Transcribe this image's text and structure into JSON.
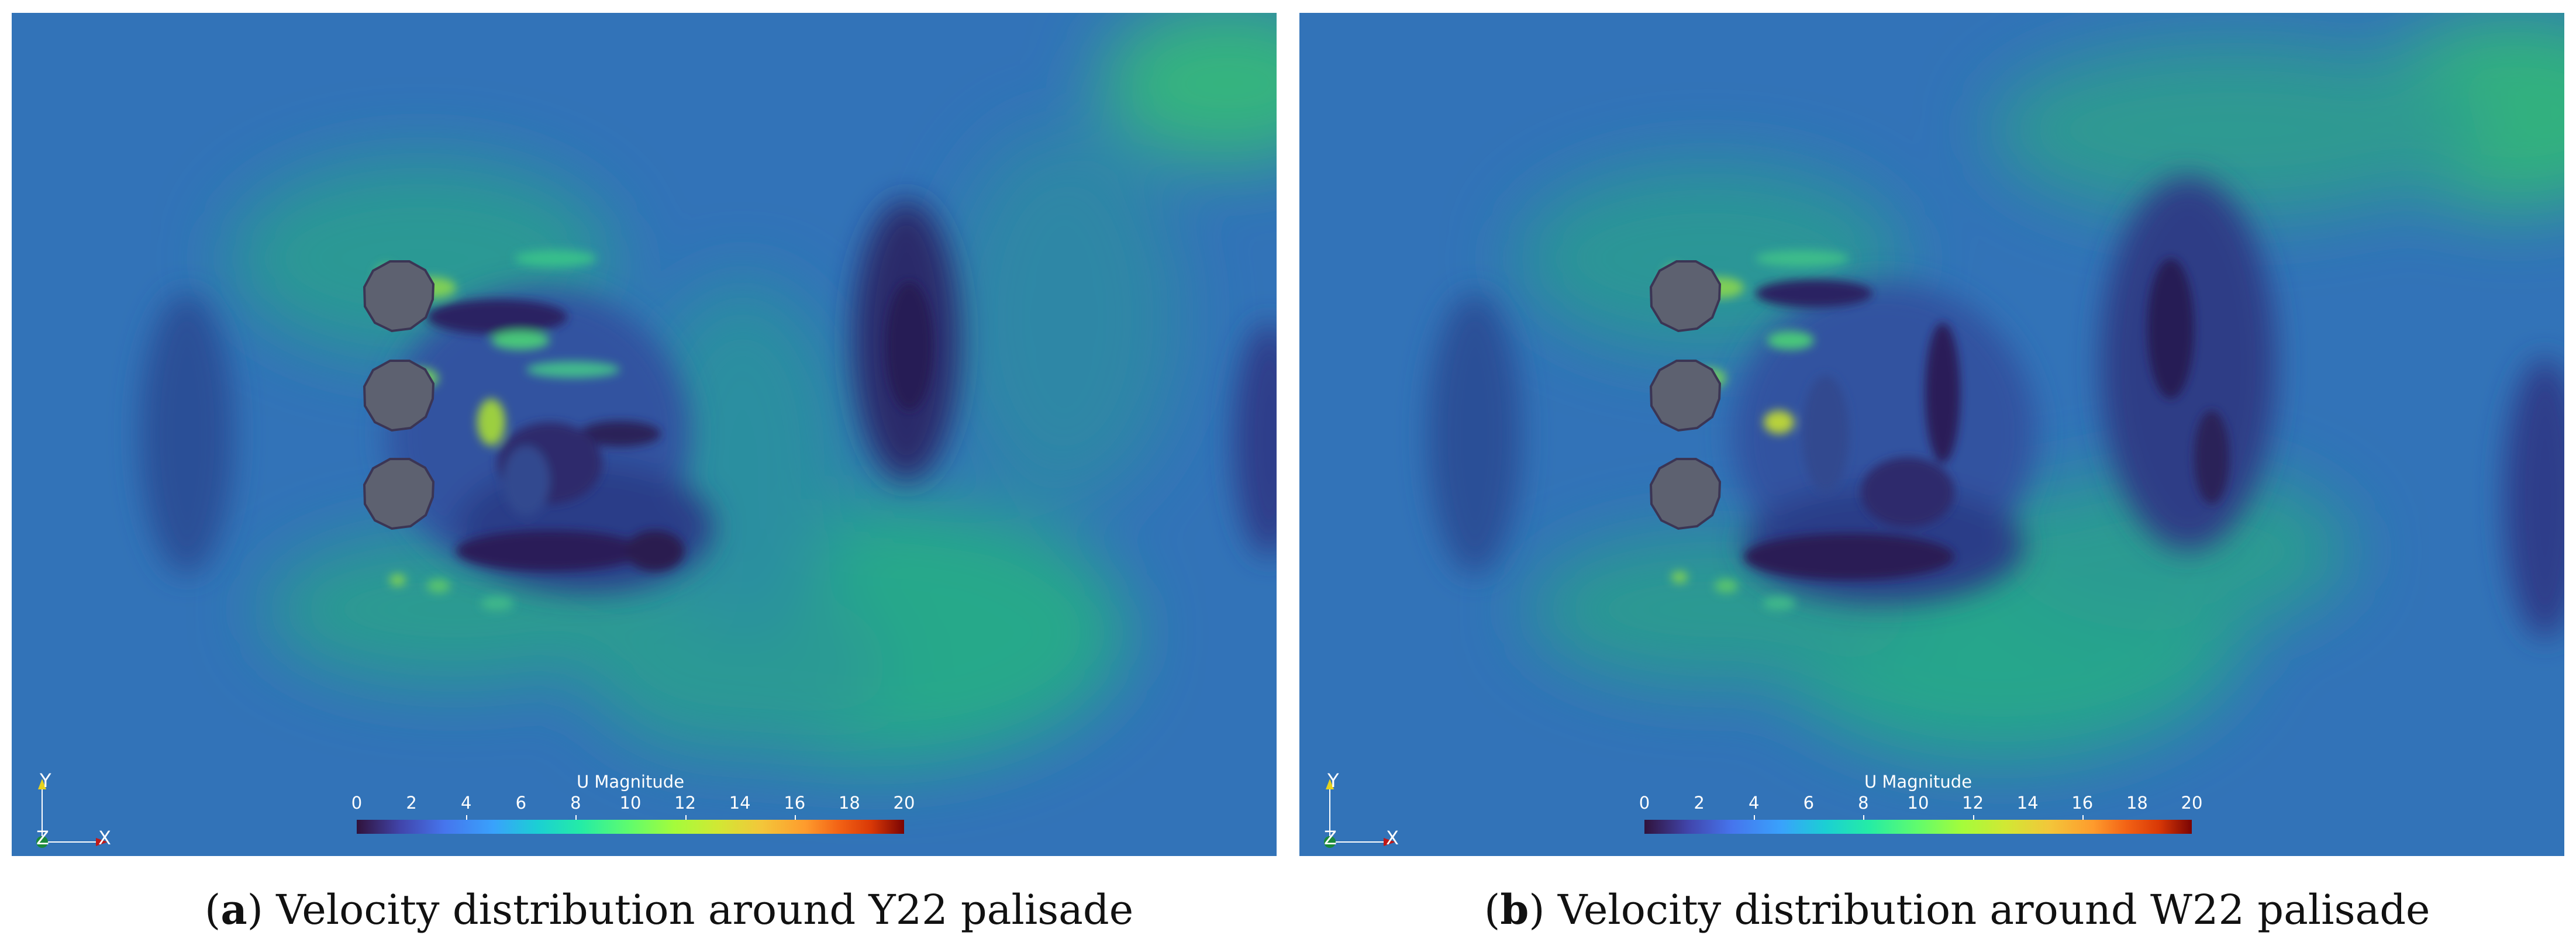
{
  "panels": [
    {
      "id": "a",
      "colorbar": {
        "title": "U Magnitude",
        "ticks": [
          "0",
          "2",
          "4",
          "6",
          "8",
          "10",
          "12",
          "14",
          "16",
          "18",
          "20"
        ]
      },
      "axes": {
        "y": "Y",
        "z": "Z",
        "x": "X"
      },
      "caption": {
        "letter": "a",
        "text": "Velocity distribution around Y22 palisade"
      }
    },
    {
      "id": "b",
      "colorbar": {
        "title": "U Magnitude",
        "ticks": [
          "0",
          "2",
          "4",
          "6",
          "8",
          "10",
          "12",
          "14",
          "16",
          "18",
          "20"
        ]
      },
      "axes": {
        "y": "Y",
        "z": "Z",
        "x": "X"
      },
      "caption": {
        "letter": "b",
        "text": "Velocity distribution around W22 palisade"
      }
    }
  ],
  "colors": {
    "freestream": "#3273b8",
    "accelerated": "#25a78c",
    "peak": "#d6d52a",
    "wake_dark": "#2a1a4e",
    "pile": "#5d6170"
  }
}
